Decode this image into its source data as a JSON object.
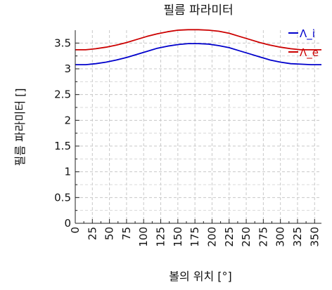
{
  "chart_data": {
    "type": "line",
    "title": "필름 파라미터",
    "xlabel": "볼의 위치 [°]",
    "ylabel": "필름 파라미터 []",
    "xlim": [
      0,
      360
    ],
    "ylim": [
      0,
      3.75
    ],
    "xticks": [
      0,
      25,
      50,
      75,
      100,
      125,
      150,
      175,
      200,
      225,
      250,
      275,
      300,
      325,
      350
    ],
    "yticks": [
      0,
      0.5,
      1,
      1.5,
      2,
      2.5,
      3,
      3.5
    ],
    "grid": true,
    "legend_position": "top-right",
    "series": [
      {
        "name": "Λ_i",
        "color": "#0000cc",
        "x": [
          0,
          15,
          30,
          45,
          60,
          75,
          90,
          105,
          120,
          135,
          150,
          165,
          180,
          195,
          210,
          225,
          240,
          255,
          270,
          285,
          300,
          315,
          330,
          345,
          360
        ],
        "y": [
          3.08,
          3.08,
          3.1,
          3.13,
          3.17,
          3.22,
          3.28,
          3.34,
          3.4,
          3.44,
          3.47,
          3.49,
          3.49,
          3.48,
          3.45,
          3.41,
          3.35,
          3.29,
          3.23,
          3.17,
          3.13,
          3.1,
          3.09,
          3.08,
          3.08
        ]
      },
      {
        "name": "Λ_e",
        "color": "#cc0000",
        "x": [
          0,
          15,
          30,
          45,
          60,
          75,
          90,
          105,
          120,
          135,
          150,
          165,
          180,
          195,
          210,
          225,
          240,
          255,
          270,
          285,
          300,
          315,
          330,
          345,
          360
        ],
        "y": [
          3.37,
          3.37,
          3.39,
          3.42,
          3.46,
          3.51,
          3.57,
          3.63,
          3.68,
          3.72,
          3.75,
          3.76,
          3.76,
          3.75,
          3.73,
          3.69,
          3.63,
          3.57,
          3.51,
          3.46,
          3.42,
          3.39,
          3.37,
          3.37,
          3.37
        ]
      }
    ]
  }
}
